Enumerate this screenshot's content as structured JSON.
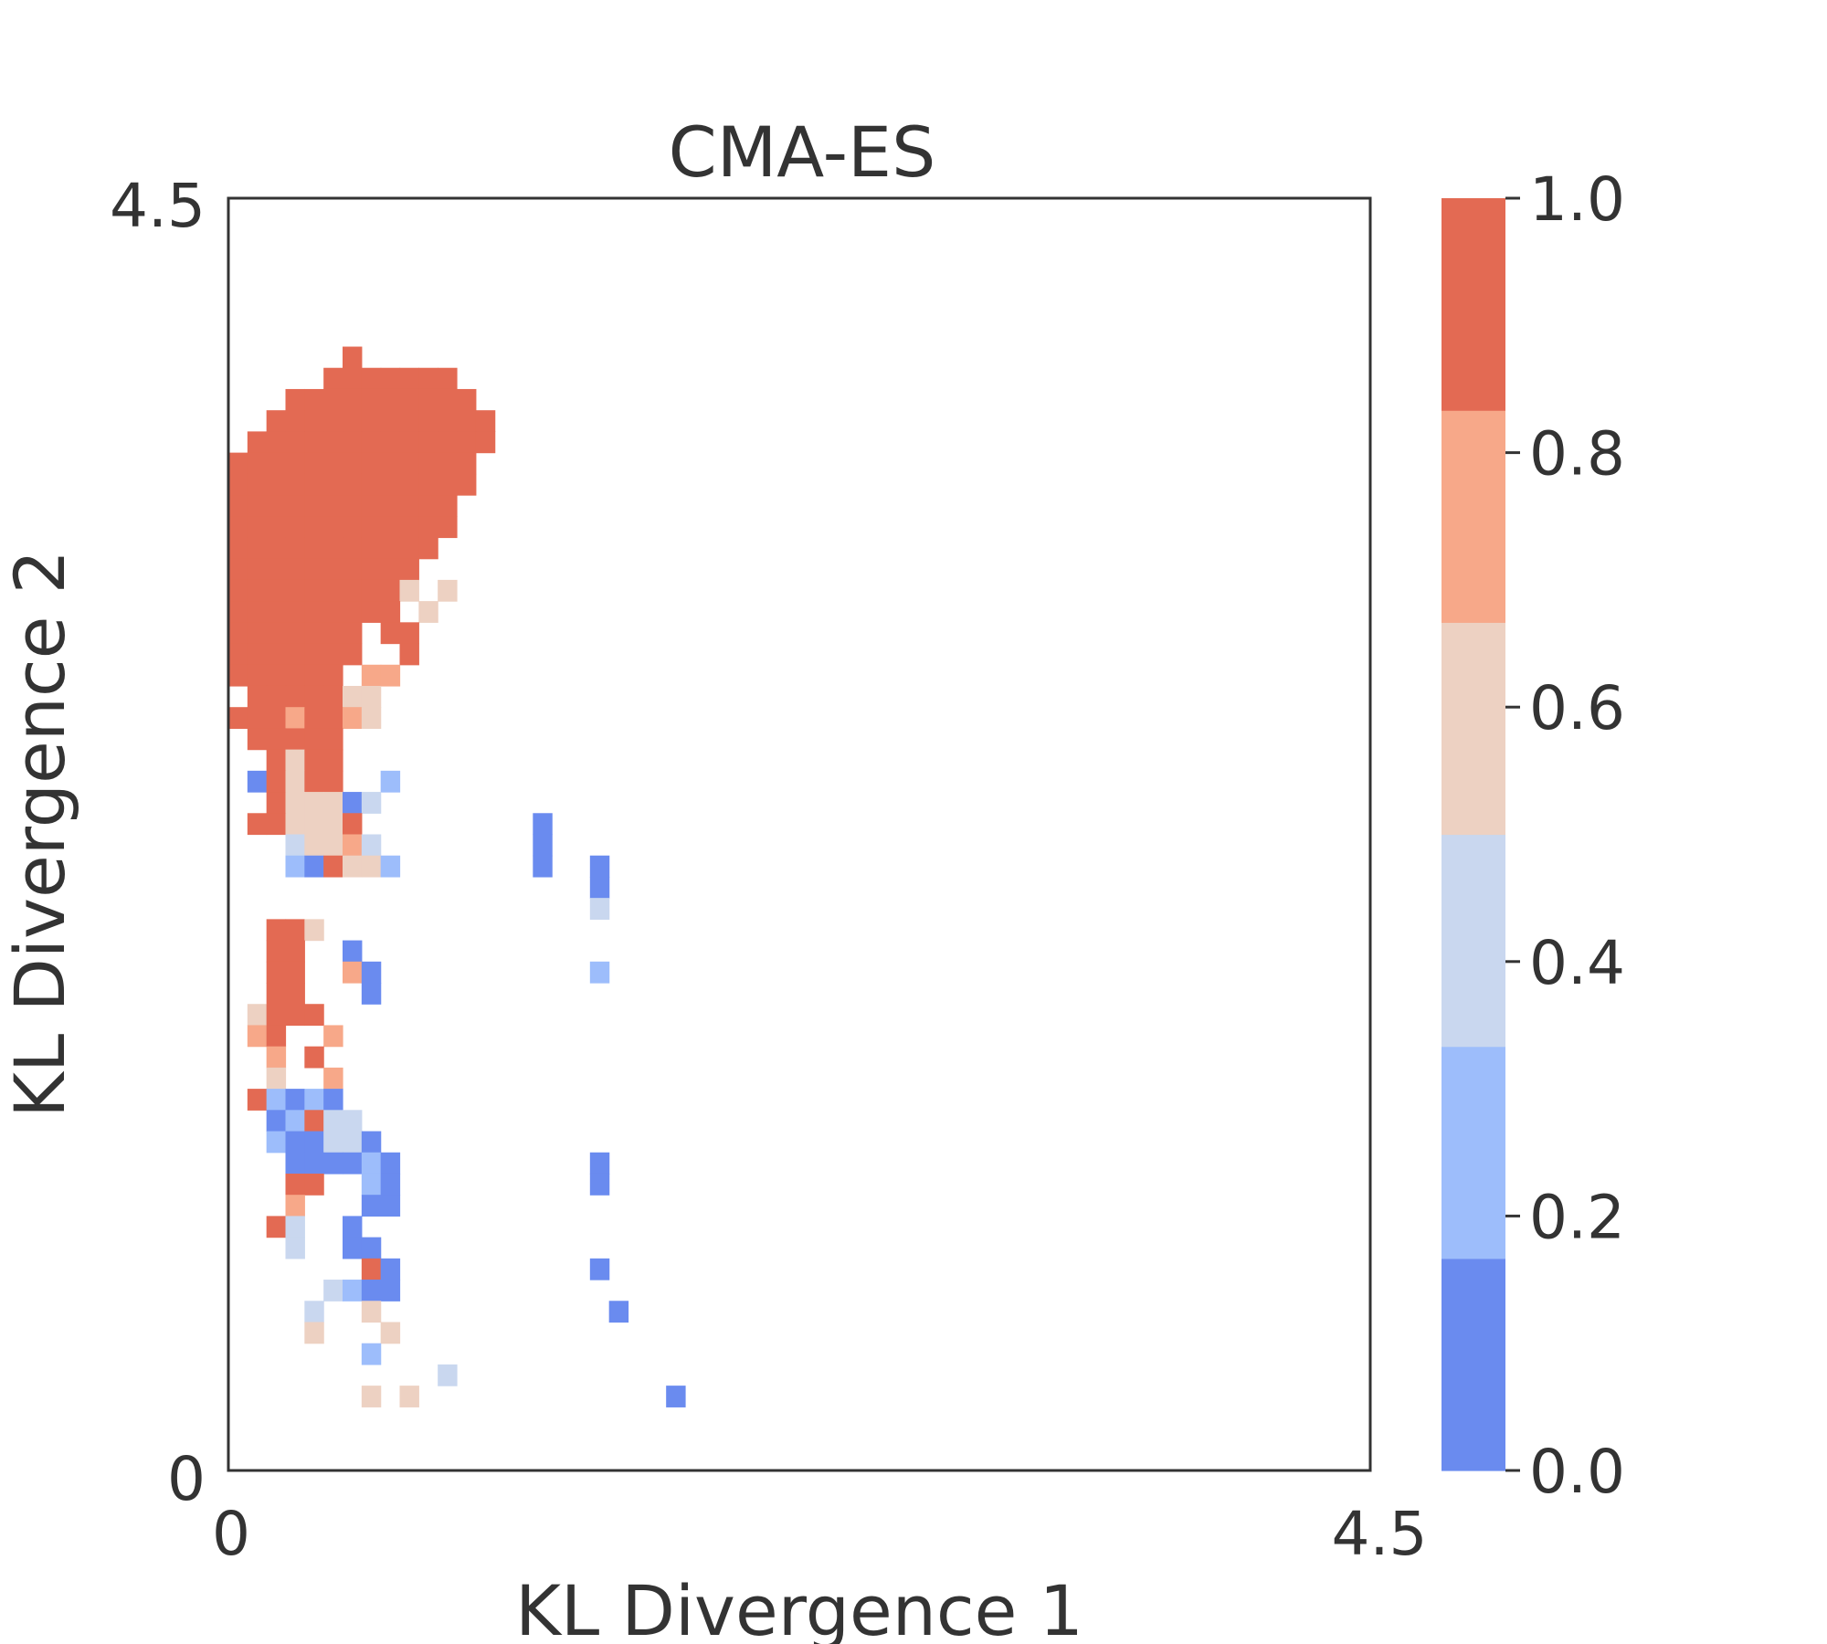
{
  "chart_data": {
    "type": "heatmap",
    "title": "CMA-ES",
    "xlabel": "KL Divergence 1",
    "ylabel": "KL Divergence 2",
    "xlim": [
      0,
      4.5
    ],
    "ylim": [
      0,
      4.5
    ],
    "x_ticks": [
      "0",
      "4.5"
    ],
    "y_ticks": [
      "0",
      "4.5"
    ],
    "grid": false,
    "colorbar": {
      "ticks": [
        "0.0",
        "0.2",
        "0.4",
        "0.6",
        "0.8",
        "1.0"
      ],
      "colors": [
        "#6a8bef",
        "#9dbdfb",
        "#c9d7ef",
        "#edd1c2",
        "#f7a889",
        "#e36a53"
      ]
    },
    "cells_note": "[column, row, level] with column 0 at left, row 0 at top; level indexes colorbar.colors",
    "grid_size": [
      60,
      60
    ],
    "cells": [
      [
        6,
        7,
        5
      ],
      [
        5,
        8,
        5
      ],
      [
        6,
        8,
        5
      ],
      [
        7,
        8,
        5
      ],
      [
        8,
        8,
        5
      ],
      [
        9,
        8,
        5
      ],
      [
        10,
        8,
        5
      ],
      [
        11,
        8,
        5
      ],
      [
        3,
        9,
        5
      ],
      [
        4,
        9,
        5
      ],
      [
        5,
        9,
        5
      ],
      [
        6,
        9,
        5
      ],
      [
        7,
        9,
        5
      ],
      [
        8,
        9,
        5
      ],
      [
        9,
        9,
        5
      ],
      [
        10,
        9,
        5
      ],
      [
        11,
        9,
        5
      ],
      [
        12,
        9,
        5
      ],
      [
        2,
        10,
        5
      ],
      [
        3,
        10,
        5
      ],
      [
        4,
        10,
        5
      ],
      [
        5,
        10,
        5
      ],
      [
        6,
        10,
        5
      ],
      [
        7,
        10,
        5
      ],
      [
        8,
        10,
        5
      ],
      [
        9,
        10,
        5
      ],
      [
        10,
        10,
        5
      ],
      [
        11,
        10,
        5
      ],
      [
        12,
        10,
        5
      ],
      [
        13,
        10,
        5
      ],
      [
        1,
        11,
        5
      ],
      [
        2,
        11,
        5
      ],
      [
        3,
        11,
        5
      ],
      [
        4,
        11,
        5
      ],
      [
        5,
        11,
        5
      ],
      [
        6,
        11,
        5
      ],
      [
        7,
        11,
        5
      ],
      [
        8,
        11,
        5
      ],
      [
        9,
        11,
        5
      ],
      [
        10,
        11,
        5
      ],
      [
        11,
        11,
        5
      ],
      [
        12,
        11,
        5
      ],
      [
        13,
        11,
        5
      ],
      [
        0,
        12,
        5
      ],
      [
        1,
        12,
        5
      ],
      [
        2,
        12,
        5
      ],
      [
        3,
        12,
        5
      ],
      [
        4,
        12,
        5
      ],
      [
        5,
        12,
        5
      ],
      [
        6,
        12,
        5
      ],
      [
        7,
        12,
        5
      ],
      [
        8,
        12,
        5
      ],
      [
        9,
        12,
        5
      ],
      [
        10,
        12,
        5
      ],
      [
        11,
        12,
        5
      ],
      [
        12,
        12,
        5
      ],
      [
        0,
        13,
        5
      ],
      [
        1,
        13,
        5
      ],
      [
        2,
        13,
        5
      ],
      [
        3,
        13,
        5
      ],
      [
        4,
        13,
        5
      ],
      [
        5,
        13,
        5
      ],
      [
        6,
        13,
        5
      ],
      [
        7,
        13,
        5
      ],
      [
        8,
        13,
        5
      ],
      [
        9,
        13,
        5
      ],
      [
        10,
        13,
        5
      ],
      [
        11,
        13,
        5
      ],
      [
        12,
        13,
        5
      ],
      [
        0,
        14,
        5
      ],
      [
        1,
        14,
        5
      ],
      [
        2,
        14,
        5
      ],
      [
        3,
        14,
        5
      ],
      [
        4,
        14,
        5
      ],
      [
        5,
        14,
        5
      ],
      [
        6,
        14,
        5
      ],
      [
        7,
        14,
        5
      ],
      [
        8,
        14,
        5
      ],
      [
        9,
        14,
        5
      ],
      [
        10,
        14,
        5
      ],
      [
        11,
        14,
        5
      ],
      [
        0,
        15,
        5
      ],
      [
        1,
        15,
        5
      ],
      [
        2,
        15,
        5
      ],
      [
        3,
        15,
        5
      ],
      [
        4,
        15,
        5
      ],
      [
        5,
        15,
        5
      ],
      [
        6,
        15,
        5
      ],
      [
        7,
        15,
        5
      ],
      [
        8,
        15,
        5
      ],
      [
        9,
        15,
        5
      ],
      [
        10,
        15,
        5
      ],
      [
        11,
        15,
        5
      ],
      [
        0,
        16,
        5
      ],
      [
        1,
        16,
        5
      ],
      [
        2,
        16,
        5
      ],
      [
        3,
        16,
        5
      ],
      [
        4,
        16,
        5
      ],
      [
        5,
        16,
        5
      ],
      [
        6,
        16,
        5
      ],
      [
        7,
        16,
        5
      ],
      [
        8,
        16,
        5
      ],
      [
        9,
        16,
        5
      ],
      [
        10,
        16,
        5
      ],
      [
        0,
        17,
        5
      ],
      [
        1,
        17,
        5
      ],
      [
        2,
        17,
        5
      ],
      [
        3,
        17,
        5
      ],
      [
        4,
        17,
        5
      ],
      [
        5,
        17,
        5
      ],
      [
        6,
        17,
        5
      ],
      [
        7,
        17,
        5
      ],
      [
        8,
        17,
        5
      ],
      [
        9,
        17,
        5
      ],
      [
        0,
        18,
        5
      ],
      [
        1,
        18,
        5
      ],
      [
        2,
        18,
        5
      ],
      [
        3,
        18,
        5
      ],
      [
        4,
        18,
        5
      ],
      [
        5,
        18,
        5
      ],
      [
        6,
        18,
        5
      ],
      [
        7,
        18,
        5
      ],
      [
        8,
        18,
        5
      ],
      [
        9,
        18,
        3
      ],
      [
        11,
        18,
        3
      ],
      [
        0,
        19,
        5
      ],
      [
        1,
        19,
        5
      ],
      [
        2,
        19,
        5
      ],
      [
        3,
        19,
        5
      ],
      [
        4,
        19,
        5
      ],
      [
        5,
        19,
        5
      ],
      [
        6,
        19,
        5
      ],
      [
        7,
        19,
        5
      ],
      [
        8,
        19,
        5
      ],
      [
        10,
        19,
        3
      ],
      [
        0,
        20,
        5
      ],
      [
        1,
        20,
        5
      ],
      [
        2,
        20,
        5
      ],
      [
        3,
        20,
        5
      ],
      [
        4,
        20,
        5
      ],
      [
        5,
        20,
        5
      ],
      [
        6,
        20,
        5
      ],
      [
        8,
        20,
        5
      ],
      [
        9,
        20,
        5
      ],
      [
        0,
        21,
        5
      ],
      [
        1,
        21,
        5
      ],
      [
        2,
        21,
        5
      ],
      [
        3,
        21,
        5
      ],
      [
        4,
        21,
        5
      ],
      [
        5,
        21,
        5
      ],
      [
        6,
        21,
        5
      ],
      [
        9,
        21,
        5
      ],
      [
        0,
        22,
        5
      ],
      [
        1,
        22,
        5
      ],
      [
        2,
        22,
        5
      ],
      [
        3,
        22,
        5
      ],
      [
        4,
        22,
        5
      ],
      [
        5,
        22,
        5
      ],
      [
        7,
        22,
        4
      ],
      [
        8,
        22,
        4
      ],
      [
        1,
        23,
        5
      ],
      [
        2,
        23,
        5
      ],
      [
        3,
        23,
        5
      ],
      [
        4,
        23,
        5
      ],
      [
        5,
        23,
        5
      ],
      [
        6,
        23,
        3
      ],
      [
        7,
        23,
        3
      ],
      [
        0,
        24,
        5
      ],
      [
        1,
        24,
        5
      ],
      [
        2,
        24,
        5
      ],
      [
        3,
        24,
        4
      ],
      [
        4,
        24,
        5
      ],
      [
        5,
        24,
        5
      ],
      [
        6,
        24,
        4
      ],
      [
        7,
        24,
        3
      ],
      [
        1,
        25,
        5
      ],
      [
        2,
        25,
        5
      ],
      [
        3,
        25,
        5
      ],
      [
        4,
        25,
        5
      ],
      [
        5,
        25,
        5
      ],
      [
        2,
        26,
        5
      ],
      [
        3,
        26,
        3
      ],
      [
        4,
        26,
        5
      ],
      [
        5,
        26,
        5
      ],
      [
        1,
        27,
        0
      ],
      [
        2,
        27,
        5
      ],
      [
        3,
        27,
        3
      ],
      [
        4,
        27,
        5
      ],
      [
        5,
        27,
        5
      ],
      [
        8,
        27,
        1
      ],
      [
        2,
        28,
        5
      ],
      [
        3,
        28,
        3
      ],
      [
        4,
        28,
        3
      ],
      [
        5,
        28,
        3
      ],
      [
        6,
        28,
        0
      ],
      [
        7,
        28,
        2
      ],
      [
        1,
        29,
        5
      ],
      [
        2,
        29,
        5
      ],
      [
        3,
        29,
        3
      ],
      [
        4,
        29,
        3
      ],
      [
        5,
        29,
        3
      ],
      [
        6,
        29,
        5
      ],
      [
        16,
        29,
        0
      ],
      [
        3,
        30,
        2
      ],
      [
        4,
        30,
        3
      ],
      [
        5,
        30,
        3
      ],
      [
        6,
        30,
        4
      ],
      [
        7,
        30,
        2
      ],
      [
        16,
        30,
        0
      ],
      [
        3,
        31,
        1
      ],
      [
        4,
        31,
        0
      ],
      [
        5,
        31,
        5
      ],
      [
        6,
        31,
        3
      ],
      [
        7,
        31,
        3
      ],
      [
        8,
        31,
        1
      ],
      [
        16,
        31,
        0
      ],
      [
        19,
        31,
        0
      ],
      [
        19,
        32,
        0
      ],
      [
        19,
        33,
        2
      ],
      [
        2,
        34,
        5
      ],
      [
        3,
        34,
        5
      ],
      [
        4,
        34,
        3
      ],
      [
        2,
        35,
        5
      ],
      [
        3,
        35,
        5
      ],
      [
        6,
        35,
        0
      ],
      [
        2,
        36,
        5
      ],
      [
        3,
        36,
        5
      ],
      [
        6,
        36,
        4
      ],
      [
        7,
        36,
        0
      ],
      [
        19,
        36,
        1
      ],
      [
        2,
        37,
        5
      ],
      [
        3,
        37,
        5
      ],
      [
        7,
        37,
        0
      ],
      [
        1,
        38,
        3
      ],
      [
        2,
        38,
        5
      ],
      [
        3,
        38,
        5
      ],
      [
        4,
        38,
        5
      ],
      [
        1,
        39,
        4
      ],
      [
        2,
        39,
        5
      ],
      [
        5,
        39,
        4
      ],
      [
        2,
        40,
        4
      ],
      [
        4,
        40,
        5
      ],
      [
        2,
        41,
        3
      ],
      [
        5,
        41,
        4
      ],
      [
        1,
        42,
        5
      ],
      [
        2,
        42,
        1
      ],
      [
        3,
        42,
        0
      ],
      [
        4,
        42,
        1
      ],
      [
        5,
        42,
        0
      ],
      [
        2,
        43,
        0
      ],
      [
        3,
        43,
        1
      ],
      [
        4,
        43,
        5
      ],
      [
        5,
        43,
        2
      ],
      [
        6,
        43,
        2
      ],
      [
        2,
        44,
        1
      ],
      [
        3,
        44,
        0
      ],
      [
        4,
        44,
        0
      ],
      [
        5,
        44,
        2
      ],
      [
        6,
        44,
        2
      ],
      [
        7,
        44,
        0
      ],
      [
        3,
        45,
        0
      ],
      [
        4,
        45,
        0
      ],
      [
        5,
        45,
        0
      ],
      [
        6,
        45,
        0
      ],
      [
        7,
        45,
        1
      ],
      [
        8,
        45,
        0
      ],
      [
        19,
        45,
        0
      ],
      [
        3,
        46,
        5
      ],
      [
        4,
        46,
        5
      ],
      [
        7,
        46,
        1
      ],
      [
        8,
        46,
        0
      ],
      [
        19,
        46,
        0
      ],
      [
        3,
        47,
        4
      ],
      [
        7,
        47,
        0
      ],
      [
        8,
        47,
        0
      ],
      [
        2,
        48,
        5
      ],
      [
        3,
        48,
        2
      ],
      [
        6,
        48,
        0
      ],
      [
        3,
        49,
        2
      ],
      [
        6,
        49,
        0
      ],
      [
        7,
        49,
        0
      ],
      [
        7,
        50,
        5
      ],
      [
        8,
        50,
        0
      ],
      [
        19,
        50,
        0
      ],
      [
        5,
        51,
        2
      ],
      [
        6,
        51,
        1
      ],
      [
        7,
        51,
        0
      ],
      [
        8,
        51,
        0
      ],
      [
        4,
        52,
        2
      ],
      [
        7,
        52,
        3
      ],
      [
        20,
        52,
        0
      ],
      [
        4,
        53,
        3
      ],
      [
        8,
        53,
        3
      ],
      [
        7,
        54,
        1
      ],
      [
        11,
        55,
        2
      ],
      [
        7,
        56,
        3
      ],
      [
        9,
        56,
        3
      ],
      [
        23,
        56,
        0
      ]
    ]
  }
}
